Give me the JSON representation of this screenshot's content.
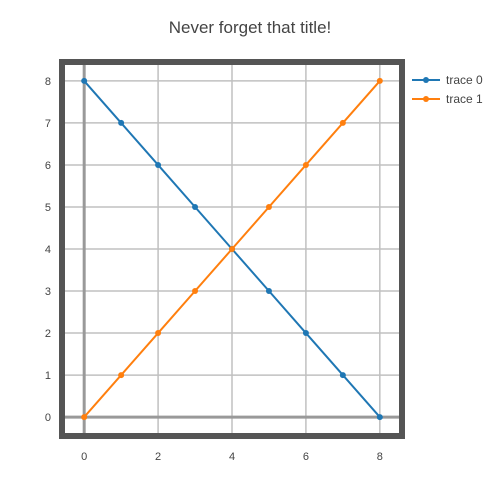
{
  "chart_data": {
    "type": "line",
    "title": "Never forget that title!",
    "xlabel": "",
    "ylabel": "",
    "xlim": [
      -0.6,
      8.6
    ],
    "ylim": [
      -0.45,
      8.45
    ],
    "grid": true,
    "legend_position": "top-right, outside plot",
    "x_ticks": [
      0,
      2,
      4,
      6,
      8
    ],
    "y_ticks": [
      0,
      1,
      2,
      3,
      4,
      5,
      6,
      7,
      8
    ],
    "x_tick_labels": [
      "0",
      "2",
      "4",
      "6",
      "8"
    ],
    "y_tick_labels": [
      "0",
      "1",
      "2",
      "3",
      "4",
      "5",
      "6",
      "7",
      "8"
    ],
    "series": [
      {
        "name": "trace 0",
        "color": "#1f77b4",
        "x": [
          0,
          1,
          2,
          3,
          4,
          5,
          6,
          7,
          8
        ],
        "y": [
          8,
          7,
          6,
          5,
          4,
          3,
          2,
          1,
          0
        ]
      },
      {
        "name": "trace 1",
        "color": "#ff7f0e",
        "x": [
          0,
          1,
          2,
          3,
          4,
          5,
          6,
          7,
          8
        ],
        "y": [
          0,
          1,
          2,
          3,
          4,
          5,
          6,
          7,
          8
        ]
      }
    ]
  }
}
